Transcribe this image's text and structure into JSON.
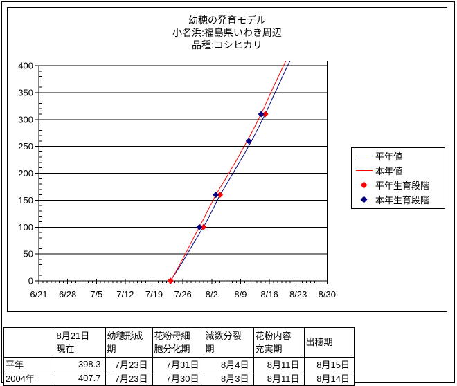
{
  "chart_data": {
    "type": "line",
    "title": "幼穂の発育モデル",
    "subtitle_lines": [
      "小名浜:福島県いわき周辺",
      "品種:コシヒカリ"
    ],
    "x_axis": {
      "tick_labels": [
        "6/21",
        "6/28",
        "7/5",
        "7/12",
        "7/19",
        "7/26",
        "8/2",
        "8/9",
        "8/16",
        "8/23",
        "8/30"
      ],
      "days_between_labels": 7,
      "minor_tick_every_days": 1,
      "range_days": [
        0,
        70
      ]
    },
    "y_axis": {
      "min": 0,
      "max": 400,
      "major_step": 50,
      "minor_step": 10,
      "tick_labels": [
        "0",
        "50",
        "100",
        "150",
        "200",
        "250",
        "300",
        "350",
        "400"
      ],
      "grid": "horizontal-major"
    },
    "legend_position": "right",
    "series": [
      {
        "name": "平年値",
        "kind": "line",
        "color": "#000080",
        "day_start": 32,
        "values": [
          0,
          12,
          24,
          36,
          49,
          62,
          75,
          88,
          100,
          114,
          129,
          144,
          160,
          172,
          185,
          198,
          211,
          224,
          237,
          251,
          265,
          280,
          295,
          310,
          327,
          344,
          360,
          377,
          393,
          409
        ]
      },
      {
        "name": "本年値",
        "kind": "line",
        "color": "#ff0000",
        "day_start": 32,
        "values": [
          0,
          13,
          27,
          41,
          56,
          71,
          86,
          100,
          115,
          130,
          145,
          160,
          173,
          185,
          198,
          211,
          224,
          238,
          252,
          266,
          280,
          295,
          310,
          327,
          344,
          361,
          377,
          393,
          409
        ]
      },
      {
        "name": "平年生育段階",
        "kind": "scatter",
        "marker": "diamond",
        "color": "#ff0000",
        "points": [
          {
            "date": "7月23日",
            "day": 32,
            "value": 0
          },
          {
            "date": "7月31日",
            "day": 40,
            "value": 100
          },
          {
            "date": "8月4日",
            "day": 44,
            "value": 160
          },
          {
            "date": "8月11日",
            "day": 51,
            "value": 260
          },
          {
            "date": "8月15日",
            "day": 55,
            "value": 310
          }
        ]
      },
      {
        "name": "本年生育段階",
        "kind": "scatter",
        "marker": "diamond",
        "color": "#000080",
        "points": [
          {
            "date": "7月23日",
            "day": 32,
            "value": 0
          },
          {
            "date": "7月30日",
            "day": 39,
            "value": 100
          },
          {
            "date": "8月3日",
            "day": 43,
            "value": 160
          },
          {
            "date": "8月11日",
            "day": 51,
            "value": 260
          },
          {
            "date": "8月14日",
            "day": 54,
            "value": 310
          }
        ]
      }
    ]
  },
  "table": {
    "headers": [
      "",
      "8月21日\n現在",
      "幼穂形成\n期",
      "花粉母細\n胞分化期",
      "減数分裂\n期",
      "花粉内容\n充実期",
      "出穂期"
    ],
    "rows": [
      {
        "label": "平年",
        "values": [
          "398.3",
          "7月23日",
          "7月31日",
          "8月4日",
          "8月11日",
          "8月15日"
        ]
      },
      {
        "label": "2004年",
        "values": [
          "407.7",
          "7月23日",
          "7月30日",
          "8月3日",
          "8月11日",
          "8月14日"
        ]
      }
    ]
  }
}
